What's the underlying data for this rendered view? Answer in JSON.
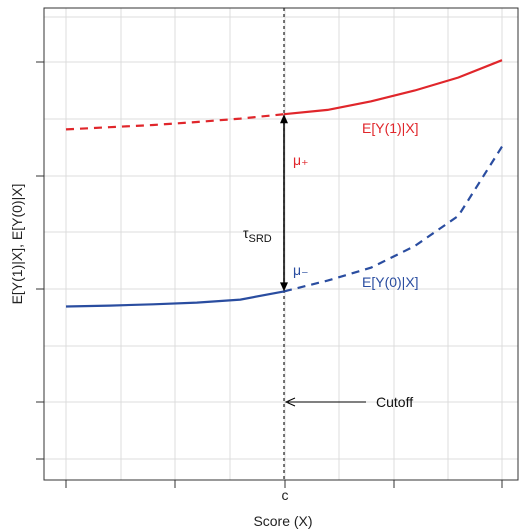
{
  "chart_data": {
    "type": "line",
    "title": "",
    "xlabel": "Score (X)",
    "ylabel": "E[Y(1)|X], E[Y(0)|X]",
    "x_tick_labels": [
      "",
      "",
      "c",
      "",
      ""
    ],
    "y_tick_labels": [
      "",
      "",
      "",
      "",
      ""
    ],
    "grid": true,
    "cutoff": {
      "x": 0.5,
      "label": "Cutoff"
    },
    "series": [
      {
        "name": "E[Y(1)|X]",
        "color": "#e0262b",
        "points": [
          [
            0,
            0.77
          ],
          [
            0.1,
            0.775
          ],
          [
            0.2,
            0.78
          ],
          [
            0.3,
            0.787
          ],
          [
            0.4,
            0.795
          ],
          [
            0.5,
            0.805
          ],
          [
            0.6,
            0.815
          ],
          [
            0.7,
            0.835
          ],
          [
            0.8,
            0.86
          ],
          [
            0.9,
            0.89
          ],
          [
            1.0,
            0.93
          ]
        ],
        "dashed_below_cutoff": true
      },
      {
        "name": "E[Y(0)|X]",
        "color": "#2a4da0",
        "points": [
          [
            0,
            0.36
          ],
          [
            0.1,
            0.362
          ],
          [
            0.2,
            0.365
          ],
          [
            0.3,
            0.369
          ],
          [
            0.4,
            0.376
          ],
          [
            0.5,
            0.395
          ],
          [
            0.6,
            0.42
          ],
          [
            0.7,
            0.45
          ],
          [
            0.8,
            0.5
          ],
          [
            0.9,
            0.57
          ],
          [
            1.0,
            0.73
          ]
        ],
        "dashed_above_cutoff": true
      }
    ],
    "annotations": {
      "mu_plus": "μ₊",
      "mu_minus": "μ₋",
      "tau": "τ",
      "tau_sub": "SRD"
    }
  }
}
